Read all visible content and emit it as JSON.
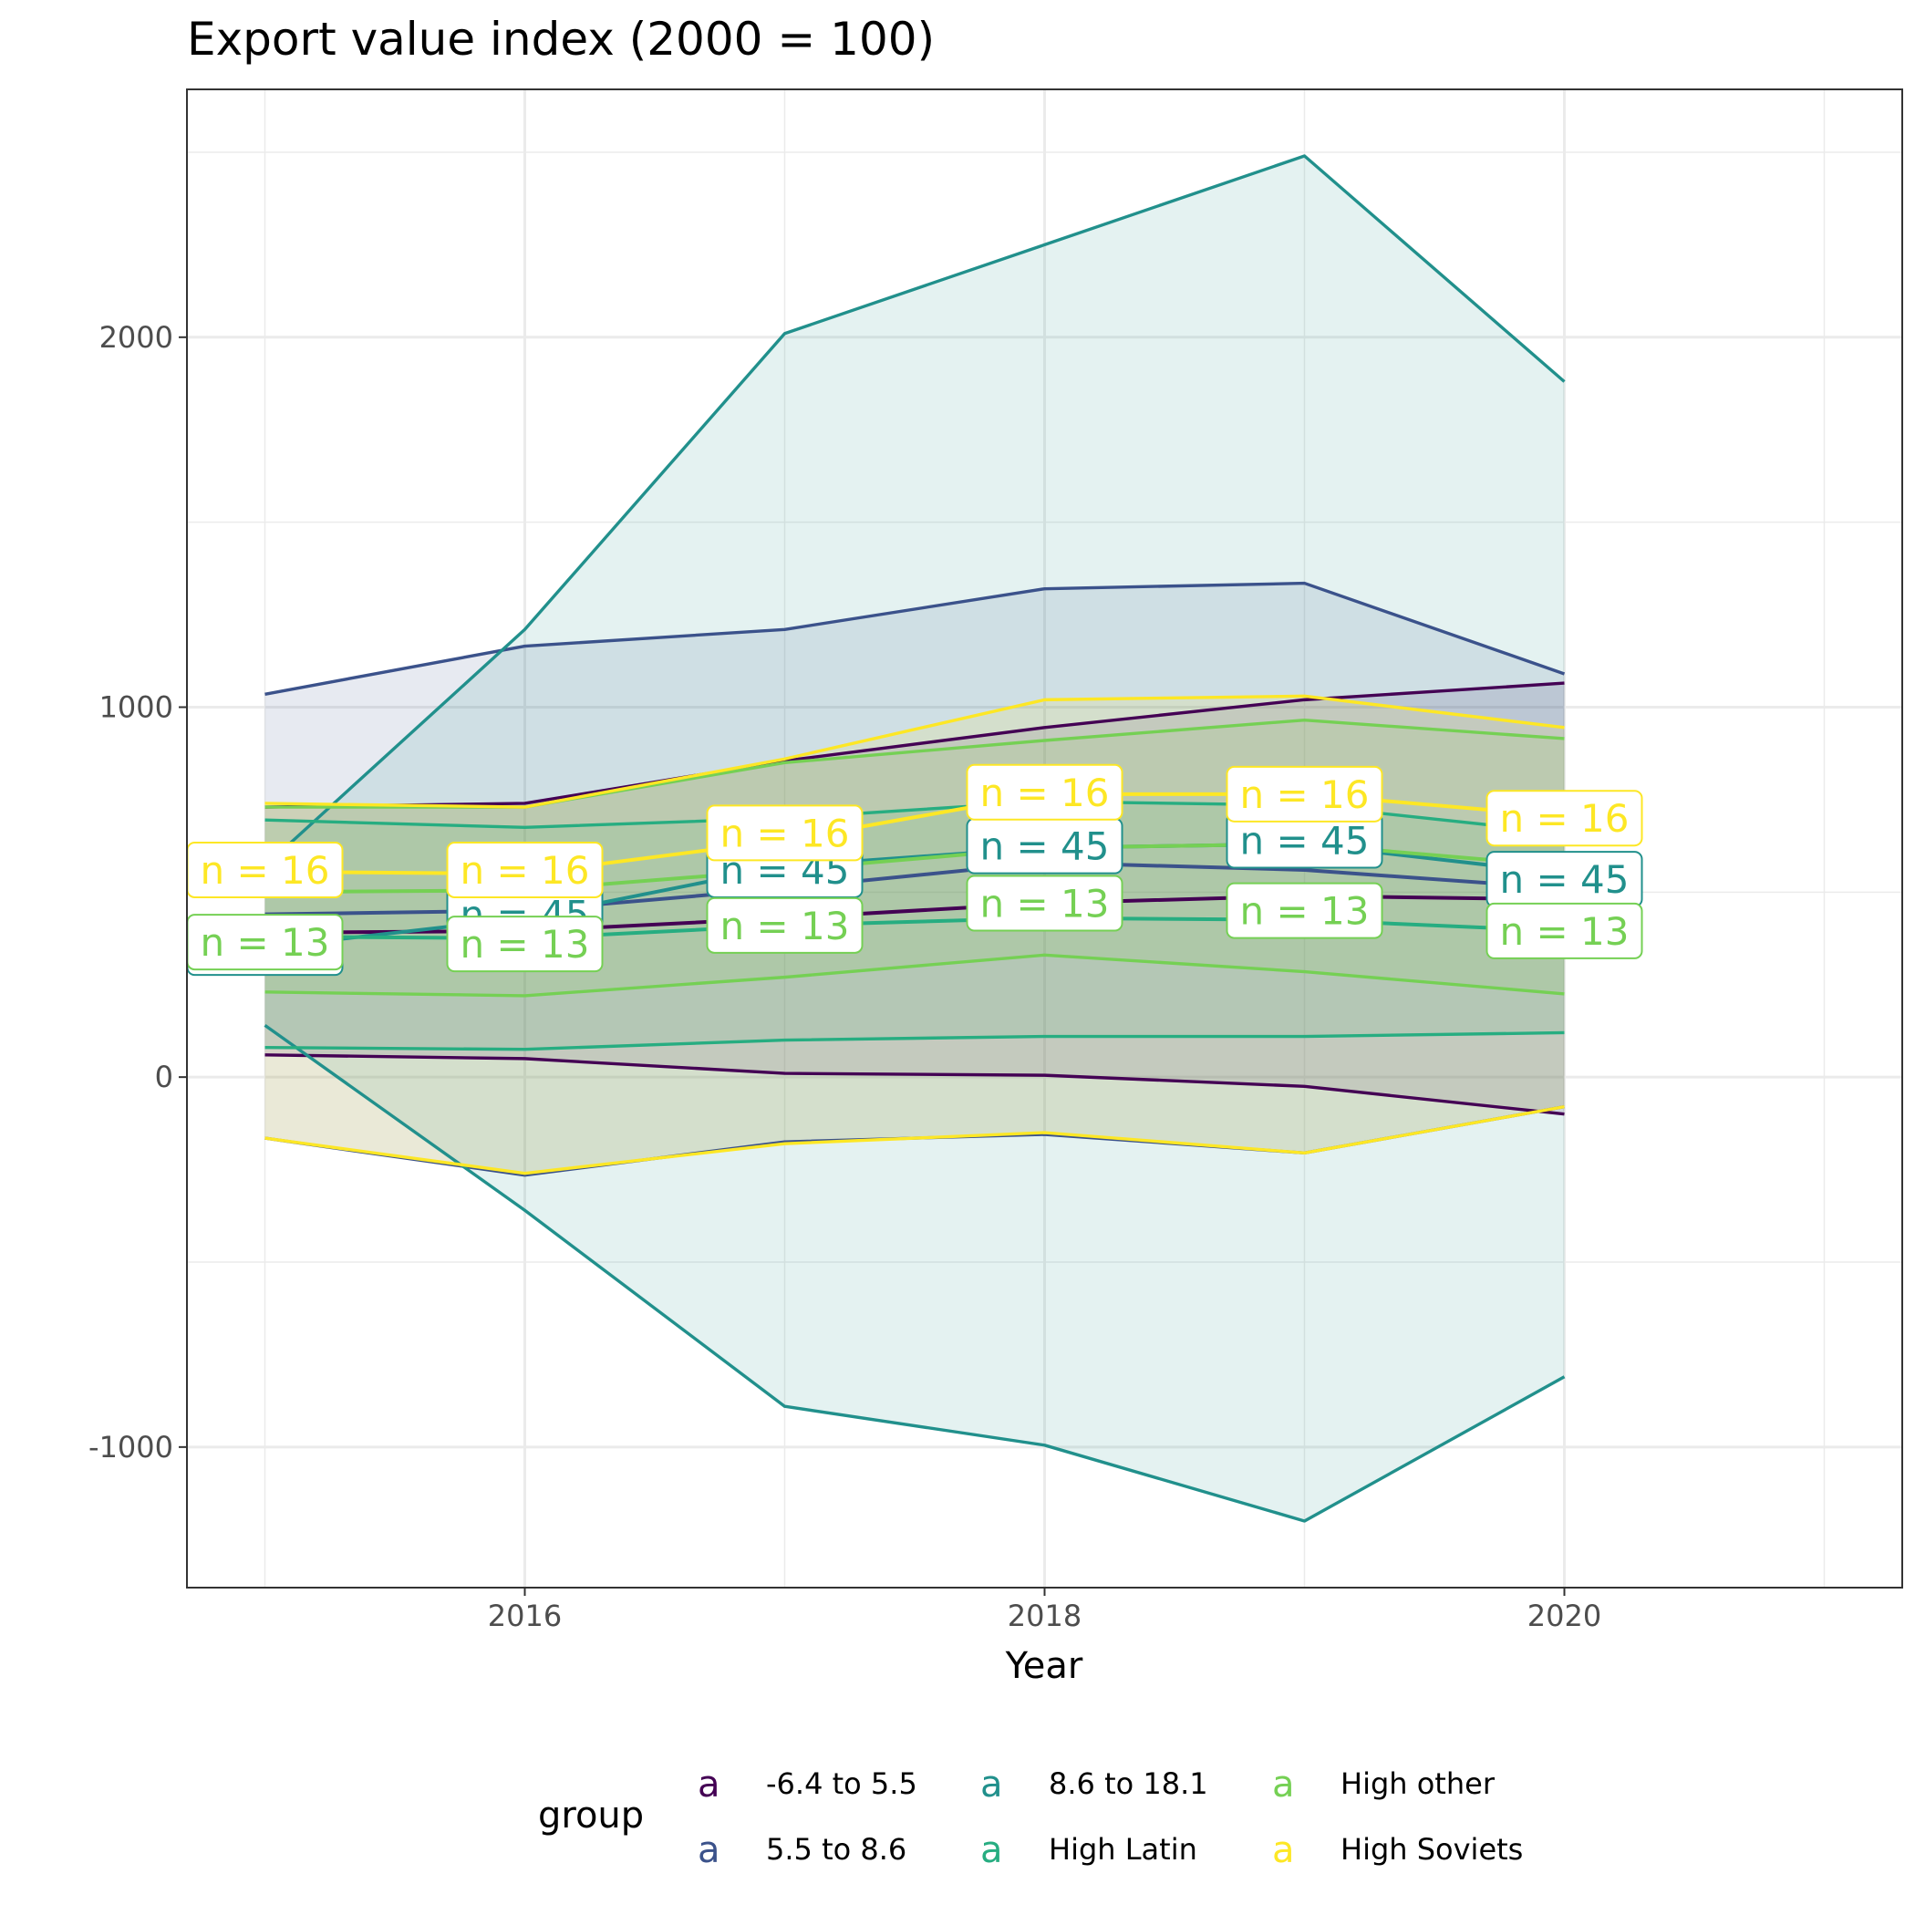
{
  "chart_data": {
    "type": "line",
    "title": "Export value index (2000 = 100)",
    "xlabel": "Year",
    "ylabel": "",
    "xlim": [
      2014.7,
      2021.3
    ],
    "ylim": [
      -1380,
      2670
    ],
    "x_ticks": [
      2016,
      2018,
      2020
    ],
    "x_tick_labels": [
      "2016",
      "2018",
      "2020"
    ],
    "y_ticks": [
      -1000,
      0,
      1000,
      2000
    ],
    "y_tick_labels": [
      "-1000",
      "0",
      "1000",
      "2000"
    ],
    "grid": true,
    "legend_position": "bottom",
    "legend_title": "group",
    "legend_key_glyph": "a",
    "x": [
      2015,
      2016,
      2017,
      2018,
      2019,
      2020
    ],
    "series": [
      {
        "name": "-6.4 to 5.5",
        "color": "#440154",
        "mean": [
          390,
          395,
          430,
          470,
          490,
          480
        ],
        "upper": [
          730,
          740,
          855,
          945,
          1020,
          1065
        ],
        "lower": [
          60,
          50,
          10,
          5,
          -25,
          -100
        ],
        "n_label": "",
        "n_label_y": null
      },
      {
        "name": "5.5 to 8.6",
        "color": "#3b528b",
        "mean": [
          440,
          450,
          510,
          580,
          560,
          510
        ],
        "upper": [
          1035,
          1165,
          1210,
          1320,
          1335,
          1090
        ],
        "lower": [
          -165,
          -265,
          -175,
          -155,
          -205,
          -80
        ],
        "n_label": "",
        "n_label_y": null
      },
      {
        "name": "8.6 to 18.1",
        "color": "#21908c",
        "mean": [
          350,
          430,
          570,
          620,
          630,
          550
        ],
        "upper": [
          570,
          1210,
          2010,
          2250,
          2490,
          1880
        ],
        "lower": [
          140,
          -360,
          -890,
          -995,
          -1200,
          -810
        ],
        "n_label": "n = 45",
        "n_label_y": [
          350,
          440,
          560,
          625,
          640,
          535
        ]
      },
      {
        "name": "High Latin",
        "color": "#27ad81",
        "mean": [
          380,
          375,
          410,
          430,
          425,
          395
        ],
        "upper": [
          695,
          675,
          700,
          745,
          735,
          660
        ],
        "lower": [
          80,
          75,
          100,
          110,
          110,
          120
        ],
        "n_label": "",
        "n_label_y": null
      },
      {
        "name": "High other",
        "color": "#75d054",
        "mean": [
          500,
          505,
          560,
          620,
          630,
          570
        ],
        "upper": [
          730,
          730,
          850,
          910,
          965,
          915
        ],
        "lower": [
          230,
          220,
          270,
          330,
          285,
          225
        ],
        "n_label": "n = 13",
        "n_label_y": [
          365,
          360,
          410,
          470,
          450,
          395
        ]
      },
      {
        "name": "High Soviets",
        "color": "#fde725",
        "mean": [
          555,
          550,
          640,
          765,
          765,
          705
        ],
        "upper": [
          740,
          730,
          860,
          1020,
          1030,
          945
        ],
        "lower": [
          -165,
          -260,
          -180,
          -150,
          -205,
          -80
        ],
        "n_label": "n = 16",
        "n_label_y": [
          560,
          560,
          660,
          770,
          765,
          700
        ]
      }
    ]
  }
}
